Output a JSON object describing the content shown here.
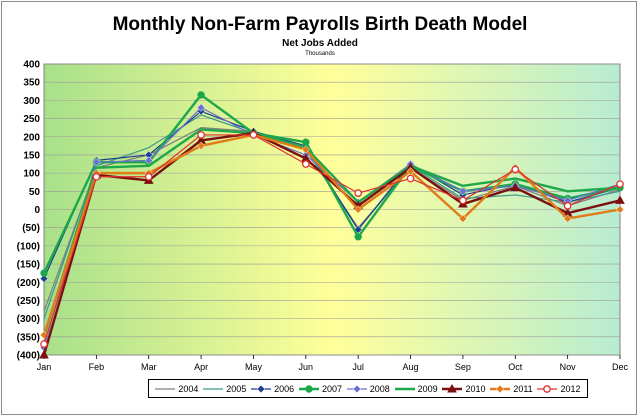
{
  "chart_data": {
    "type": "line",
    "title": "Monthly Non-Farm Payrolls Birth Death Model",
    "subtitle": "Net Jobs Added",
    "units": "Thousands",
    "categories": [
      "Jan",
      "Feb",
      "Mar",
      "Apr",
      "May",
      "Jun",
      "Jul",
      "Aug",
      "Sep",
      "Oct",
      "Nov",
      "Dec"
    ],
    "ylim": [
      -400,
      400
    ],
    "yticks": [
      -400,
      -350,
      -300,
      -250,
      -200,
      -150,
      -100,
      -50,
      0,
      50,
      100,
      150,
      200,
      250,
      300,
      350,
      400
    ],
    "ytick_labels": [
      "(400)",
      "(350)",
      "(300)",
      "(250)",
      "(200)",
      "(150)",
      "(100)",
      "(50)",
      "0",
      "50",
      "100",
      "150",
      "200",
      "250",
      "300",
      "350",
      "400"
    ],
    "grid": true,
    "legend": "bottom",
    "series": [
      {
        "name": "2004",
        "color": "#7f7f7f",
        "marker": "none",
        "values": [
          -280,
          115,
          150,
          225,
          215,
          165,
          -50,
          115,
          25,
          65,
          10,
          55
        ]
      },
      {
        "name": "2005",
        "color": "#3c9a8a",
        "marker": "none",
        "values": [
          -300,
          120,
          170,
          260,
          210,
          165,
          -55,
          120,
          30,
          40,
          20,
          50
        ]
      },
      {
        "name": "2006",
        "color": "#1f3f8f",
        "marker": "diamond",
        "values": [
          -190,
          135,
          150,
          270,
          215,
          175,
          -55,
          125,
          40,
          70,
          20,
          60
        ]
      },
      {
        "name": "2007",
        "color": "#1aa84a",
        "marker": "circle",
        "values": [
          -175,
          130,
          130,
          315,
          210,
          185,
          -75,
          120,
          50,
          70,
          30,
          60
        ]
      },
      {
        "name": "2008",
        "color": "#6a6fd0",
        "marker": "diamond",
        "values": [
          -380,
          130,
          135,
          280,
          205,
          150,
          20,
          125,
          50,
          65,
          25,
          70
        ]
      },
      {
        "name": "2009",
        "color": "#1fa84a",
        "marker": "none",
        "values": [
          -350,
          115,
          120,
          220,
          210,
          170,
          20,
          120,
          65,
          85,
          50,
          60
        ]
      },
      {
        "name": "2010",
        "color": "#7a1010",
        "marker": "triangle",
        "values": [
          -400,
          95,
          80,
          190,
          210,
          140,
          10,
          115,
          15,
          60,
          -10,
          25
        ]
      },
      {
        "name": "2011",
        "color": "#e07b18",
        "marker": "diamond",
        "values": [
          -345,
          100,
          100,
          175,
          205,
          165,
          0,
          105,
          -25,
          115,
          -25,
          0
        ]
      },
      {
        "name": "2012",
        "color": "#e03030",
        "marker": "open-circle",
        "values": [
          -370,
          90,
          90,
          205,
          205,
          125,
          45,
          85,
          25,
          110,
          10,
          70
        ]
      }
    ]
  },
  "colors": {
    "plot_gradient_left": "#a8e08a",
    "plot_gradient_mid": "#ffff9a",
    "plot_gradient_right": "#b8ecd0"
  }
}
